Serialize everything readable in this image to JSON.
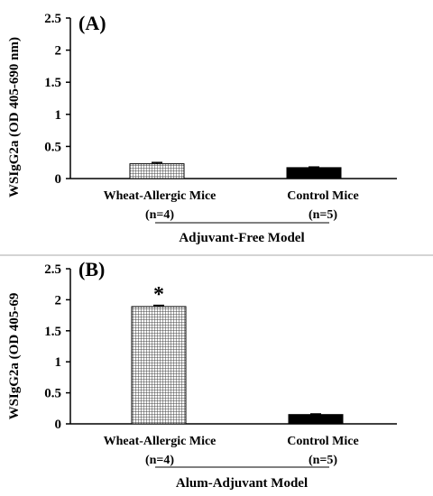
{
  "chart_data": [
    {
      "type": "bar",
      "panel_label": "(A)",
      "ylabel": "WSIgG2a (OD 405-690 nm)",
      "ylim": [
        0,
        2.5
      ],
      "yticks": [
        "0",
        "0.5",
        "1",
        "1.5",
        "2",
        "2.5"
      ],
      "categories": [
        "Wheat-Allergic Mice",
        "Control  Mice"
      ],
      "category_n": [
        "(n=4)",
        "(n=5)"
      ],
      "values": [
        0.23,
        0.17
      ],
      "errors": [
        0.02,
        0.01
      ],
      "bar_styles": [
        "hatched",
        "solid"
      ],
      "significance": [
        "",
        ""
      ],
      "group_label": "Adjuvant-Free Model"
    },
    {
      "type": "bar",
      "panel_label": "(B)",
      "ylabel": "WSIgG2a (OD 405-69",
      "ylim": [
        0,
        2.5
      ],
      "yticks": [
        "0",
        "0.5",
        "1",
        "1.5",
        "2",
        "2.5"
      ],
      "categories": [
        "Wheat-Allergic Mice",
        "Control  Mice"
      ],
      "category_n": [
        "(n=4)",
        "(n=5)"
      ],
      "values": [
        1.89,
        0.15
      ],
      "errors": [
        0.02,
        0.01
      ],
      "bar_styles": [
        "hatched",
        "solid"
      ],
      "significance": [
        "*",
        ""
      ],
      "group_label": "Alum-Adjuvant Model"
    }
  ],
  "colors": {
    "background": "#ffffff",
    "ink": "#000000",
    "hatch": "#555555",
    "divider": "#aaaaaa"
  }
}
